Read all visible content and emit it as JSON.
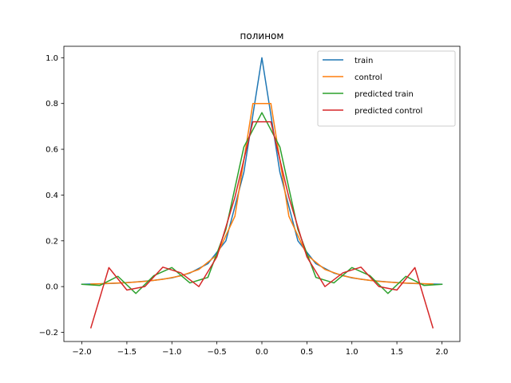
{
  "chart_data": {
    "type": "line",
    "title": "полином",
    "xlabel": "",
    "ylabel": "",
    "xlim": [
      -2.2,
      2.2
    ],
    "ylim": [
      -0.24,
      1.05
    ],
    "xticks": [
      -2.0,
      -1.5,
      -1.0,
      -0.5,
      0.0,
      0.5,
      1.0,
      1.5,
      2.0
    ],
    "xtick_labels": [
      "−2.0",
      "−1.5",
      "−1.0",
      "−0.5",
      "0.0",
      "0.5",
      "1.0",
      "1.5",
      "2.0"
    ],
    "yticks": [
      -0.2,
      0.0,
      0.2,
      0.4,
      0.6,
      0.8,
      1.0
    ],
    "ytick_labels": [
      "−0.2",
      "0.0",
      "0.2",
      "0.4",
      "0.6",
      "0.8",
      "1.0"
    ],
    "grid": false,
    "legend_position": "top-right",
    "series": [
      {
        "name": "train",
        "color": "#1f77b4",
        "x": [
          -2.0,
          -1.8,
          -1.6,
          -1.4,
          -1.2,
          -1.0,
          -0.8,
          -0.6,
          -0.4,
          -0.2,
          0.0,
          0.2,
          0.4,
          0.6,
          0.8,
          1.0,
          1.2,
          1.4,
          1.6,
          1.8,
          2.0
        ],
        "y": [
          0.01,
          0.012,
          0.015,
          0.02,
          0.027,
          0.038,
          0.059,
          0.1,
          0.2,
          0.5,
          1.0,
          0.5,
          0.2,
          0.1,
          0.059,
          0.038,
          0.027,
          0.02,
          0.015,
          0.012,
          0.01
        ]
      },
      {
        "name": "control",
        "color": "#ff7f0e",
        "x": [
          -1.9,
          -1.7,
          -1.5,
          -1.3,
          -1.1,
          -0.9,
          -0.7,
          -0.5,
          -0.3,
          -0.1,
          0.1,
          0.3,
          0.5,
          0.7,
          0.9,
          1.1,
          1.3,
          1.5,
          1.7,
          1.9
        ],
        "y": [
          0.011,
          0.014,
          0.017,
          0.023,
          0.032,
          0.047,
          0.075,
          0.138,
          0.307,
          0.8,
          0.8,
          0.307,
          0.138,
          0.075,
          0.047,
          0.032,
          0.023,
          0.017,
          0.014,
          0.011
        ]
      },
      {
        "name": "predicted train",
        "color": "#2ca02c",
        "x": [
          -2.0,
          -1.8,
          -1.6,
          -1.4,
          -1.2,
          -1.0,
          -0.8,
          -0.6,
          -0.4,
          -0.2,
          0.0,
          0.2,
          0.4,
          0.6,
          0.8,
          1.0,
          1.2,
          1.4,
          1.6,
          1.8,
          2.0
        ],
        "y": [
          0.01,
          0.005,
          0.045,
          -0.03,
          0.048,
          0.083,
          0.016,
          0.04,
          0.25,
          0.61,
          0.76,
          0.61,
          0.25,
          0.04,
          0.016,
          0.083,
          0.048,
          -0.03,
          0.045,
          0.005,
          0.01
        ]
      },
      {
        "name": "predicted control",
        "color": "#d62728",
        "x": [
          -1.9,
          -1.7,
          -1.5,
          -1.3,
          -1.1,
          -0.9,
          -0.7,
          -0.5,
          -0.3,
          -0.1,
          0.1,
          0.3,
          0.5,
          0.7,
          0.9,
          1.1,
          1.3,
          1.5,
          1.7,
          1.9
        ],
        "y": [
          -0.18,
          0.083,
          -0.015,
          0.0,
          0.085,
          0.06,
          0.0,
          0.13,
          0.39,
          0.72,
          0.72,
          0.39,
          0.13,
          0.0,
          0.06,
          0.085,
          0.0,
          -0.015,
          0.083,
          -0.18
        ]
      }
    ]
  }
}
